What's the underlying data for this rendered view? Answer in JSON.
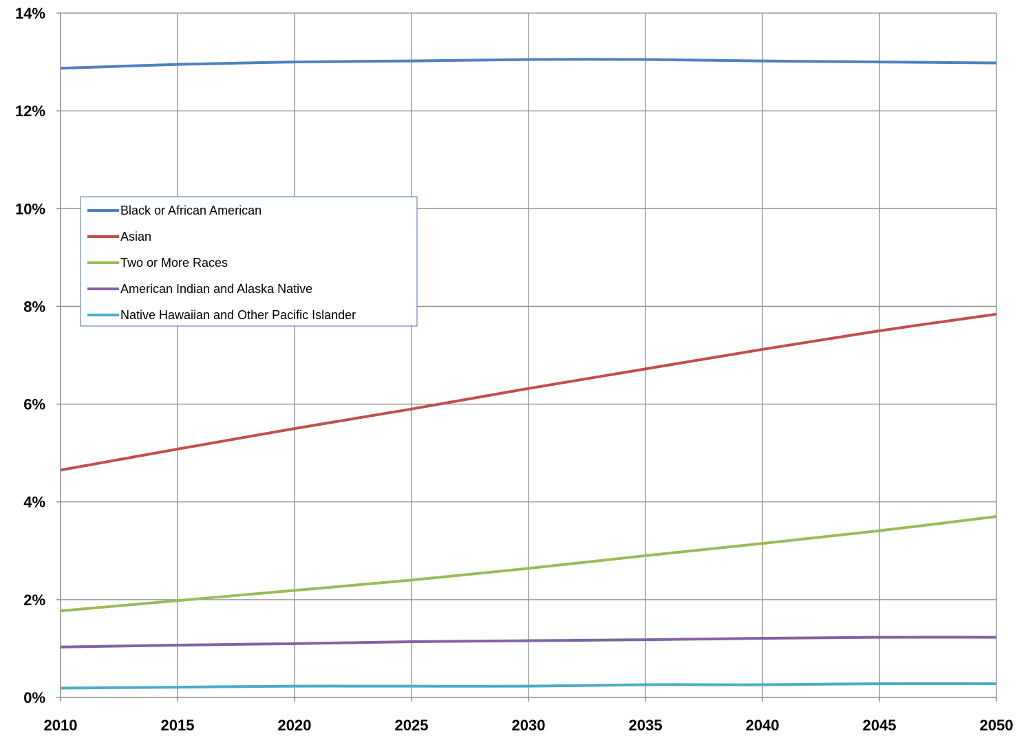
{
  "chart_data": {
    "type": "line",
    "title": "",
    "xlabel": "",
    "ylabel": "",
    "x": [
      2010,
      2015,
      2020,
      2025,
      2030,
      2035,
      2040,
      2045,
      2050
    ],
    "x_tick_labels": [
      "2010",
      "2015",
      "2020",
      "2025",
      "2030",
      "2035",
      "2040",
      "2045",
      "2050"
    ],
    "ylim": [
      0,
      14
    ],
    "y_ticks": [
      0,
      2,
      4,
      6,
      8,
      10,
      12,
      14
    ],
    "y_tick_labels": [
      "0%",
      "2%",
      "4%",
      "6%",
      "8%",
      "10%",
      "12%",
      "14%"
    ],
    "grid": true,
    "legend_position": "upper-left, inside plot area",
    "series": [
      {
        "name": "Black or African American",
        "color": "#4f81bd",
        "values": [
          12.87,
          12.95,
          13.0,
          13.02,
          13.05,
          13.05,
          13.02,
          13.0,
          12.98
        ]
      },
      {
        "name": "Asian",
        "color": "#c0504d",
        "values": [
          4.65,
          5.08,
          5.5,
          5.9,
          6.32,
          6.72,
          7.12,
          7.5,
          7.84
        ]
      },
      {
        "name": "Two or More Races",
        "color": "#9bbb59",
        "values": [
          1.77,
          1.98,
          2.19,
          2.4,
          2.64,
          2.9,
          3.15,
          3.41,
          3.7
        ]
      },
      {
        "name": "American Indian and Alaska Native",
        "color": "#8064a2",
        "values": [
          1.03,
          1.07,
          1.1,
          1.14,
          1.16,
          1.18,
          1.21,
          1.23,
          1.23
        ]
      },
      {
        "name": "Native Hawaiian  and Other Pacific Islander",
        "color": "#4bacc6",
        "values": [
          0.19,
          0.21,
          0.23,
          0.23,
          0.23,
          0.26,
          0.26,
          0.28,
          0.28
        ]
      }
    ]
  }
}
